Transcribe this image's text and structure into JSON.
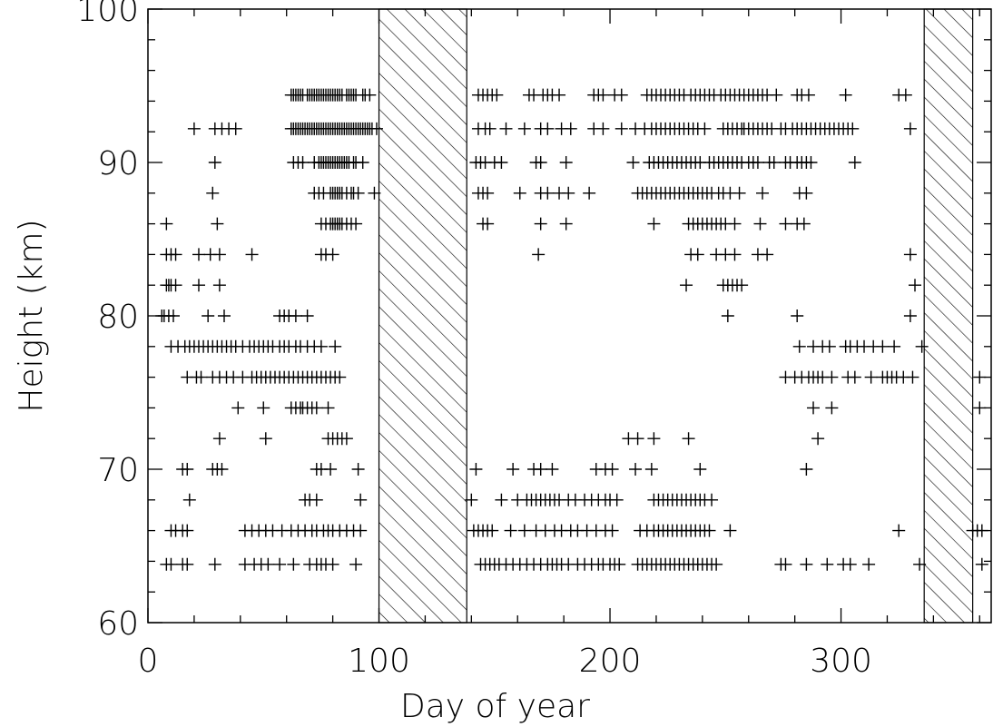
{
  "chart_data": {
    "type": "scatter",
    "title": "",
    "xlabel": "Day of year",
    "ylabel": "Height (km)",
    "xlim": [
      0,
      365
    ],
    "ylim": [
      60,
      100
    ],
    "x_ticks": [
      0,
      100,
      200,
      300
    ],
    "y_ticks": [
      60,
      70,
      80,
      90,
      100
    ],
    "x_tick_labels": [
      "0",
      "100",
      "200",
      "300"
    ],
    "y_tick_labels": [
      "60",
      "70",
      "80",
      "90",
      "100"
    ],
    "marker": "+",
    "marker_color": "#000000",
    "grid": false,
    "hatched_periods": [
      [
        100,
        138
      ],
      [
        336,
        357
      ]
    ],
    "rows": [
      {
        "y": 94.4,
        "x": [
          62,
          63,
          64,
          65,
          66,
          67,
          69,
          70,
          71,
          72,
          73,
          74,
          75,
          76,
          77,
          78,
          79,
          80,
          81,
          82,
          83,
          84,
          86,
          87,
          88,
          89,
          90,
          93,
          94,
          96,
          143,
          145,
          147,
          149,
          151,
          165,
          167,
          171,
          173,
          175,
          178,
          193,
          195,
          197,
          202,
          205,
          216,
          218,
          220,
          222,
          224,
          226,
          228,
          230,
          232,
          235,
          237,
          239,
          241,
          243,
          245,
          248,
          250,
          252,
          254,
          256,
          258,
          260,
          262,
          264,
          266,
          268,
          272,
          281,
          283,
          286,
          302,
          325,
          328
        ]
      },
      {
        "y": 92.2,
        "x": [
          20,
          29,
          32,
          35,
          38,
          62,
          63,
          64,
          65,
          66,
          67,
          68,
          69,
          70,
          71,
          72,
          73,
          74,
          75,
          76,
          77,
          78,
          79,
          80,
          81,
          82,
          83,
          84,
          85,
          86,
          87,
          88,
          89,
          90,
          91,
          92,
          93,
          94,
          95,
          96,
          97,
          99,
          143,
          146,
          148,
          155,
          163,
          170,
          173,
          179,
          183,
          193,
          197,
          205,
          211,
          215,
          218,
          220,
          222,
          224,
          226,
          228,
          230,
          232,
          234,
          236,
          238,
          241,
          249,
          251,
          253,
          255,
          257,
          258,
          260,
          262,
          264,
          266,
          268,
          270,
          274,
          276,
          279,
          281,
          283,
          285,
          287,
          289,
          291,
          293,
          295,
          297,
          299,
          301,
          303,
          305,
          330
        ]
      },
      {
        "y": 90,
        "x": [
          29,
          63,
          65,
          67,
          72,
          74,
          75,
          76,
          77,
          78,
          79,
          80,
          81,
          82,
          83,
          84,
          85,
          86,
          87,
          89,
          90,
          93,
          142,
          144,
          146,
          150,
          153,
          168,
          170,
          181,
          210,
          217,
          219,
          221,
          223,
          225,
          227,
          229,
          231,
          233,
          235,
          237,
          239,
          243,
          245,
          247,
          249,
          251,
          253,
          255,
          257,
          260,
          262,
          264,
          269,
          271,
          276,
          278,
          281,
          283,
          285,
          287,
          306
        ]
      },
      {
        "y": 88,
        "x": [
          28,
          72,
          74,
          76,
          79,
          80,
          81,
          82,
          83,
          84,
          86,
          88,
          89,
          91,
          98,
          143,
          145,
          147,
          161,
          170,
          173,
          178,
          182,
          191,
          212,
          214,
          216,
          218,
          220,
          222,
          224,
          226,
          228,
          230,
          232,
          234,
          236,
          238,
          240,
          242,
          244,
          247,
          249,
          252,
          256,
          266,
          282,
          285
        ]
      },
      {
        "y": 86,
        "x": [
          8,
          30,
          75,
          77,
          79,
          80,
          81,
          82,
          83,
          84,
          86,
          88,
          90,
          145,
          147,
          170,
          181,
          219,
          234,
          236,
          238,
          240,
          242,
          244,
          246,
          248,
          250,
          254,
          265,
          276,
          281,
          284
        ]
      },
      {
        "y": 84,
        "x": [
          8,
          10,
          12,
          22,
          27,
          31,
          45,
          75,
          77,
          80,
          169,
          235,
          238,
          246,
          250,
          254,
          264,
          268,
          330
        ]
      },
      {
        "y": 82,
        "x": [
          8,
          9,
          10,
          12,
          22,
          31,
          233,
          249,
          251,
          253,
          255,
          257,
          332
        ]
      },
      {
        "y": 80,
        "x": [
          6,
          7,
          9,
          11,
          26,
          33,
          57,
          59,
          61,
          64,
          69,
          251,
          281,
          330
        ]
      },
      {
        "y": 78,
        "x": [
          10,
          13,
          16,
          18,
          20,
          22,
          24,
          26,
          28,
          30,
          32,
          34,
          36,
          38,
          41,
          44,
          46,
          48,
          50,
          52,
          54,
          57,
          59,
          61,
          64,
          66,
          69,
          72,
          75,
          81,
          282,
          288,
          292,
          295,
          302,
          304,
          307,
          310,
          314,
          318,
          323,
          335
        ]
      },
      {
        "y": 76,
        "x": [
          17,
          21,
          23,
          28,
          31,
          34,
          37,
          41,
          45,
          47,
          49,
          51,
          53,
          55,
          57,
          59,
          61,
          63,
          65,
          67,
          69,
          71,
          73,
          75,
          77,
          79,
          81,
          83,
          276,
          280,
          283,
          286,
          288,
          290,
          292,
          296,
          303,
          306,
          313,
          318,
          320,
          322,
          324,
          327,
          331,
          360
        ]
      },
      {
        "y": 74,
        "x": [
          39,
          50,
          62,
          64,
          66,
          67,
          69,
          71,
          73,
          78,
          288,
          296,
          360
        ]
      },
      {
        "y": 72,
        "x": [
          31,
          51,
          78,
          80,
          82,
          84,
          86,
          208,
          212,
          219,
          234,
          290
        ]
      },
      {
        "y": 70,
        "x": [
          15,
          17,
          28,
          30,
          32,
          73,
          75,
          79,
          91,
          142,
          158,
          167,
          170,
          175,
          194,
          198,
          201,
          211,
          218,
          239,
          285
        ]
      },
      {
        "y": 68,
        "x": [
          18,
          68,
          70,
          73,
          92,
          140,
          153,
          160,
          164,
          166,
          168,
          170,
          172,
          174,
          176,
          178,
          182,
          185,
          189,
          192,
          195,
          198,
          200,
          203,
          219,
          221,
          223,
          225,
          227,
          229,
          231,
          233,
          235,
          237,
          239,
          241,
          244
        ]
      },
      {
        "y": 66,
        "x": [
          10,
          12,
          15,
          17,
          42,
          45,
          48,
          51,
          54,
          58,
          62,
          65,
          68,
          71,
          73,
          76,
          78,
          80,
          83,
          86,
          89,
          92,
          141,
          143,
          145,
          147,
          149,
          157,
          163,
          168,
          172,
          176,
          179,
          183,
          186,
          190,
          194,
          198,
          201,
          213,
          216,
          219,
          221,
          223,
          225,
          227,
          229,
          231,
          233,
          235,
          237,
          239,
          241,
          243,
          252,
          325,
          357,
          359,
          361
        ]
      },
      {
        "y": 63.8,
        "x": [
          8,
          10,
          15,
          17,
          29,
          42,
          46,
          49,
          52,
          57,
          63,
          70,
          73,
          75,
          77,
          80,
          90,
          144,
          146,
          148,
          150,
          152,
          155,
          158,
          161,
          164,
          167,
          170,
          173,
          175,
          177,
          179,
          182,
          186,
          189,
          192,
          195,
          197,
          200,
          202,
          204,
          212,
          214,
          216,
          218,
          220,
          222,
          224,
          226,
          228,
          230,
          232,
          234,
          236,
          238,
          240,
          242,
          244,
          246,
          274,
          276,
          285,
          294,
          301,
          304,
          312,
          334,
          361
        ]
      }
    ]
  }
}
